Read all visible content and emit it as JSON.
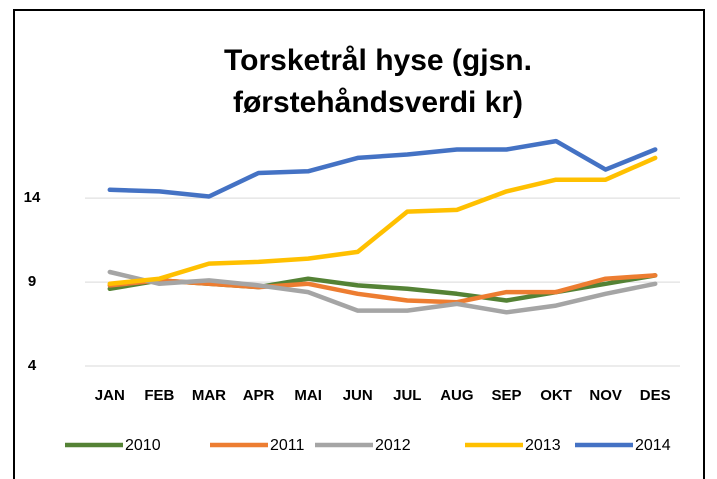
{
  "chart_data": {
    "type": "line",
    "title_lines": [
      "Torsketrål hyse (gjsn.",
      "førstehåndsverdi kr)"
    ],
    "categories": [
      "JAN",
      "FEB",
      "MAR",
      "APR",
      "MAI",
      "JUN",
      "JUL",
      "AUG",
      "SEP",
      "OKT",
      "NOV",
      "DES"
    ],
    "series": [
      {
        "name": "2010",
        "color": "#548235",
        "values": [
          8.6,
          9.1,
          8.9,
          8.7,
          9.2,
          8.8,
          8.6,
          8.3,
          7.9,
          8.4,
          8.9,
          9.4
        ]
      },
      {
        "name": "2011",
        "color": "#ed7d31",
        "values": [
          8.8,
          9.1,
          8.9,
          8.7,
          8.9,
          8.3,
          7.9,
          7.8,
          8.4,
          8.4,
          9.2,
          9.4
        ]
      },
      {
        "name": "2012",
        "color": "#a5a5a5",
        "values": [
          9.6,
          8.9,
          9.1,
          8.8,
          8.4,
          7.3,
          7.3,
          7.7,
          7.2,
          7.6,
          8.3,
          8.9
        ]
      },
      {
        "name": "2013",
        "color": "#ffc000",
        "values": [
          8.9,
          9.2,
          10.1,
          10.2,
          10.4,
          10.8,
          13.2,
          13.3,
          14.4,
          15.1,
          15.1,
          16.4
        ]
      },
      {
        "name": "2014",
        "color": "#4472c4",
        "values": [
          14.5,
          14.4,
          14.1,
          15.5,
          15.6,
          16.4,
          16.6,
          16.9,
          16.9,
          17.4,
          15.7,
          16.9
        ]
      }
    ],
    "ylim": [
      4,
      18
    ],
    "yticks": [
      4,
      9,
      14
    ],
    "grid": true
  }
}
